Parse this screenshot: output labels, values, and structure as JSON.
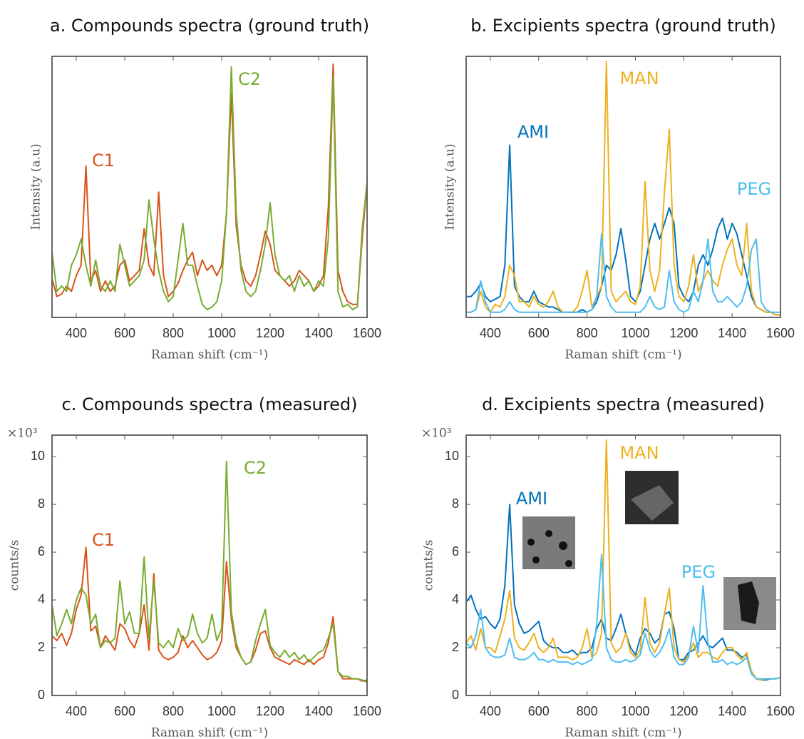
{
  "chart_data": [
    {
      "type": "line",
      "title": "a. Compounds spectra (ground truth)",
      "x_label": "Raman shift (cm⁻¹)",
      "y_label": "Intensity (a.u)",
      "x": [
        300,
        320,
        340,
        360,
        380,
        400,
        420,
        440,
        460,
        480,
        500,
        520,
        540,
        560,
        580,
        600,
        620,
        640,
        660,
        680,
        700,
        720,
        740,
        760,
        780,
        800,
        820,
        840,
        860,
        880,
        900,
        920,
        940,
        960,
        980,
        1000,
        1020,
        1040,
        1060,
        1080,
        1100,
        1120,
        1140,
        1160,
        1180,
        1200,
        1220,
        1240,
        1260,
        1280,
        1300,
        1320,
        1340,
        1360,
        1380,
        1400,
        1420,
        1440,
        1460,
        1480,
        1500,
        1520,
        1540,
        1560,
        1580,
        1600
      ],
      "xlim": [
        300,
        1600
      ],
      "xticks": [
        400,
        600,
        800,
        1000,
        1200,
        1400,
        1600
      ],
      "ylim": [
        0,
        1
      ],
      "series": [
        {
          "name": "C1",
          "color": "#d95319",
          "values": [
            0.15,
            0.08,
            0.09,
            0.12,
            0.1,
            0.16,
            0.2,
            0.58,
            0.14,
            0.18,
            0.1,
            0.14,
            0.1,
            0.12,
            0.2,
            0.22,
            0.14,
            0.16,
            0.18,
            0.34,
            0.2,
            0.16,
            0.48,
            0.16,
            0.08,
            0.1,
            0.13,
            0.18,
            0.22,
            0.25,
            0.16,
            0.22,
            0.18,
            0.2,
            0.16,
            0.2,
            0.4,
            0.86,
            0.35,
            0.2,
            0.14,
            0.12,
            0.16,
            0.24,
            0.33,
            0.28,
            0.18,
            0.16,
            0.14,
            0.12,
            0.14,
            0.18,
            0.16,
            0.14,
            0.1,
            0.12,
            0.16,
            0.42,
            0.97,
            0.18,
            0.1,
            0.06,
            0.05,
            0.05,
            0.3,
            0.52
          ]
        },
        {
          "name": "C2",
          "color": "#77ac30",
          "values": [
            0.25,
            0.1,
            0.12,
            0.1,
            0.2,
            0.24,
            0.3,
            0.2,
            0.12,
            0.22,
            0.12,
            0.1,
            0.14,
            0.1,
            0.28,
            0.2,
            0.12,
            0.14,
            0.16,
            0.22,
            0.45,
            0.3,
            0.18,
            0.1,
            0.06,
            0.08,
            0.22,
            0.36,
            0.2,
            0.2,
            0.12,
            0.05,
            0.03,
            0.04,
            0.06,
            0.14,
            0.4,
            0.96,
            0.4,
            0.18,
            0.1,
            0.08,
            0.1,
            0.18,
            0.28,
            0.44,
            0.24,
            0.16,
            0.14,
            0.16,
            0.1,
            0.16,
            0.12,
            0.14,
            0.1,
            0.14,
            0.12,
            0.3,
            0.92,
            0.1,
            0.04,
            0.05,
            0.03,
            0.04,
            0.34,
            0.52
          ]
        }
      ]
    },
    {
      "type": "line",
      "title": "b. Excipients spectra (ground truth)",
      "x_label": "Raman shift (cm⁻¹)",
      "y_label": "Intensity (a.u)",
      "x": [
        300,
        320,
        340,
        360,
        380,
        400,
        420,
        440,
        460,
        480,
        500,
        520,
        540,
        560,
        580,
        600,
        620,
        640,
        660,
        680,
        700,
        720,
        740,
        760,
        780,
        800,
        820,
        840,
        860,
        880,
        900,
        920,
        940,
        960,
        980,
        1000,
        1020,
        1040,
        1060,
        1080,
        1100,
        1120,
        1140,
        1160,
        1180,
        1200,
        1220,
        1240,
        1260,
        1280,
        1300,
        1320,
        1340,
        1360,
        1380,
        1400,
        1420,
        1440,
        1460,
        1480,
        1500,
        1520,
        1540,
        1560,
        1580,
        1600
      ],
      "xlim": [
        300,
        1600
      ],
      "xticks": [
        400,
        600,
        800,
        1000,
        1200,
        1400,
        1600
      ],
      "ylim": [
        0,
        1
      ],
      "series": [
        {
          "name": "AMI",
          "color": "#0072bd",
          "values": [
            0.08,
            0.08,
            0.1,
            0.13,
            0.08,
            0.06,
            0.07,
            0.08,
            0.2,
            0.66,
            0.12,
            0.08,
            0.06,
            0.06,
            0.1,
            0.06,
            0.05,
            0.04,
            0.04,
            0.03,
            0.02,
            0.02,
            0.02,
            0.02,
            0.03,
            0.02,
            0.03,
            0.06,
            0.12,
            0.2,
            0.18,
            0.24,
            0.34,
            0.22,
            0.08,
            0.06,
            0.1,
            0.2,
            0.3,
            0.36,
            0.3,
            0.36,
            0.42,
            0.36,
            0.12,
            0.08,
            0.06,
            0.1,
            0.2,
            0.24,
            0.2,
            0.26,
            0.34,
            0.38,
            0.3,
            0.36,
            0.32,
            0.24,
            0.16,
            0.08,
            0.04,
            0.03,
            0.02,
            0.02,
            0.01,
            0.01
          ]
        },
        {
          "name": "MAN",
          "color": "#edb120",
          "values": [
            0.02,
            0.02,
            0.03,
            0.1,
            0.04,
            0.02,
            0.05,
            0.04,
            0.08,
            0.2,
            0.16,
            0.06,
            0.06,
            0.04,
            0.08,
            0.05,
            0.04,
            0.06,
            0.1,
            0.04,
            0.02,
            0.02,
            0.02,
            0.04,
            0.1,
            0.18,
            0.04,
            0.08,
            0.12,
            0.98,
            0.1,
            0.06,
            0.08,
            0.1,
            0.06,
            0.05,
            0.12,
            0.52,
            0.18,
            0.1,
            0.18,
            0.48,
            0.72,
            0.2,
            0.08,
            0.06,
            0.12,
            0.24,
            0.1,
            0.14,
            0.18,
            0.14,
            0.12,
            0.2,
            0.26,
            0.3,
            0.2,
            0.16,
            0.36,
            0.1,
            0.04,
            0.03,
            0.02,
            0.02,
            0.01,
            0.01
          ]
        },
        {
          "name": "PEG",
          "color": "#4dbeee",
          "values": [
            0.02,
            0.02,
            0.03,
            0.14,
            0.06,
            0.02,
            0.02,
            0.02,
            0.03,
            0.06,
            0.03,
            0.02,
            0.02,
            0.02,
            0.02,
            0.02,
            0.02,
            0.02,
            0.02,
            0.02,
            0.02,
            0.02,
            0.02,
            0.02,
            0.02,
            0.02,
            0.03,
            0.08,
            0.32,
            0.08,
            0.04,
            0.02,
            0.02,
            0.02,
            0.02,
            0.02,
            0.02,
            0.04,
            0.08,
            0.04,
            0.03,
            0.04,
            0.18,
            0.06,
            0.03,
            0.02,
            0.03,
            0.1,
            0.06,
            0.14,
            0.3,
            0.1,
            0.06,
            0.06,
            0.08,
            0.06,
            0.04,
            0.06,
            0.12,
            0.26,
            0.3,
            0.06,
            0.03,
            0.02,
            0.02,
            0.02
          ]
        }
      ]
    },
    {
      "type": "line",
      "title": "c. Compounds spectra (measured)",
      "x_label": "Raman shift (cm⁻¹)",
      "y_label": "counts/s",
      "y_exponent": "×10³",
      "x": [
        300,
        320,
        340,
        360,
        380,
        400,
        420,
        440,
        460,
        480,
        500,
        520,
        540,
        560,
        580,
        600,
        620,
        640,
        660,
        680,
        700,
        720,
        740,
        760,
        780,
        800,
        820,
        840,
        860,
        880,
        900,
        920,
        940,
        960,
        980,
        1000,
        1020,
        1040,
        1060,
        1080,
        1100,
        1120,
        1140,
        1160,
        1180,
        1200,
        1220,
        1240,
        1260,
        1280,
        1300,
        1320,
        1340,
        1360,
        1380,
        1400,
        1420,
        1440,
        1460,
        1480,
        1500,
        1520,
        1540,
        1560,
        1580,
        1600
      ],
      "xlim": [
        300,
        1600
      ],
      "xticks": [
        400,
        600,
        800,
        1000,
        1200,
        1400,
        1600
      ],
      "ylim": [
        0,
        10.9
      ],
      "yticks": [
        0,
        2,
        4,
        6,
        8,
        10
      ],
      "series": [
        {
          "name": "C1",
          "color": "#d95319",
          "values": [
            2.5,
            2.3,
            2.6,
            2.1,
            2.6,
            3.6,
            4.2,
            6.2,
            2.7,
            2.9,
            2.0,
            2.5,
            2.2,
            1.9,
            3.0,
            2.8,
            2.3,
            2.0,
            2.6,
            3.8,
            1.9,
            5.1,
            1.9,
            1.6,
            1.5,
            1.6,
            1.8,
            2.5,
            2.0,
            2.3,
            2.0,
            1.7,
            1.5,
            1.6,
            1.8,
            2.3,
            5.6,
            3.2,
            2.0,
            1.6,
            1.3,
            1.4,
            1.9,
            2.6,
            2.7,
            2.0,
            1.6,
            1.5,
            1.4,
            1.3,
            1.5,
            1.4,
            1.3,
            1.5,
            1.3,
            1.5,
            1.6,
            2.2,
            3.3,
            1.0,
            0.7,
            0.7,
            0.7,
            0.7,
            0.6,
            0.65
          ]
        },
        {
          "name": "C2",
          "color": "#77ac30",
          "values": [
            3.8,
            2.5,
            3.0,
            3.6,
            3.0,
            4.0,
            4.5,
            4.2,
            3.0,
            3.4,
            2.0,
            2.3,
            2.2,
            2.4,
            4.8,
            3.0,
            3.5,
            2.6,
            2.6,
            5.8,
            2.4,
            4.8,
            2.2,
            2.0,
            2.3,
            2.0,
            2.8,
            2.3,
            2.5,
            3.4,
            2.6,
            2.2,
            2.4,
            3.4,
            2.3,
            2.8,
            9.8,
            3.5,
            2.2,
            1.6,
            1.3,
            1.4,
            2.3,
            3.0,
            3.6,
            2.1,
            1.8,
            1.6,
            1.9,
            1.6,
            1.8,
            1.5,
            1.7,
            1.4,
            1.6,
            1.8,
            1.9,
            2.4,
            3.0,
            1.0,
            0.8,
            0.8,
            0.7,
            0.7,
            0.65,
            0.55
          ]
        }
      ]
    },
    {
      "type": "line",
      "title": "d. Excipients spectra (measured)",
      "x_label": "Raman shift (cm⁻¹)",
      "y_label": "counts/s",
      "y_exponent": "×10³",
      "x": [
        300,
        320,
        340,
        360,
        380,
        400,
        420,
        440,
        460,
        480,
        500,
        520,
        540,
        560,
        580,
        600,
        620,
        640,
        660,
        680,
        700,
        720,
        740,
        760,
        780,
        800,
        820,
        840,
        860,
        880,
        900,
        920,
        940,
        960,
        980,
        1000,
        1020,
        1040,
        1060,
        1080,
        1100,
        1120,
        1140,
        1160,
        1180,
        1200,
        1220,
        1240,
        1260,
        1280,
        1300,
        1320,
        1340,
        1360,
        1380,
        1400,
        1420,
        1440,
        1460,
        1480,
        1500,
        1520,
        1540,
        1560,
        1580,
        1600
      ],
      "xlim": [
        300,
        1600
      ],
      "xticks": [
        400,
        600,
        800,
        1000,
        1200,
        1400,
        1600
      ],
      "ylim": [
        0,
        10.9
      ],
      "yticks": [
        0,
        2,
        4,
        6,
        8,
        10
      ],
      "series": [
        {
          "name": "AMI",
          "color": "#0072bd",
          "values": [
            3.9,
            4.2,
            3.6,
            3.2,
            3.3,
            3.0,
            2.8,
            3.2,
            4.6,
            8.0,
            3.8,
            3.0,
            2.6,
            2.7,
            2.9,
            3.1,
            2.3,
            2.1,
            2.0,
            2.0,
            1.8,
            1.8,
            1.9,
            1.7,
            1.8,
            1.8,
            2.0,
            2.8,
            3.2,
            2.4,
            2.3,
            2.8,
            3.4,
            2.6,
            2.0,
            1.7,
            2.4,
            2.8,
            2.6,
            2.2,
            2.4,
            3.4,
            3.5,
            2.8,
            1.5,
            1.5,
            1.8,
            1.9,
            2.2,
            2.5,
            2.1,
            2.0,
            2.2,
            2.4,
            1.9,
            1.9,
            1.8,
            1.6,
            1.7,
            1.0,
            0.7,
            0.65,
            0.65,
            0.7,
            0.7,
            0.75
          ]
        },
        {
          "name": "MAN",
          "color": "#edb120",
          "values": [
            2.2,
            2.5,
            1.9,
            2.8,
            2.0,
            2.0,
            1.8,
            2.5,
            3.2,
            4.4,
            2.4,
            2.0,
            1.9,
            2.2,
            2.6,
            2.0,
            1.8,
            2.0,
            2.4,
            1.6,
            1.6,
            1.6,
            1.5,
            1.6,
            2.0,
            2.8,
            1.6,
            1.8,
            2.6,
            10.7,
            2.2,
            1.8,
            2.0,
            2.6,
            1.8,
            1.6,
            1.9,
            4.1,
            2.2,
            1.8,
            2.2,
            3.4,
            4.5,
            2.0,
            1.5,
            1.4,
            1.7,
            2.2,
            1.6,
            1.8,
            1.8,
            1.6,
            1.5,
            1.8,
            2.0,
            2.0,
            1.7,
            1.5,
            1.8,
            1.0,
            0.7,
            0.65,
            0.7,
            0.7,
            0.7,
            0.75
          ]
        },
        {
          "name": "PEG",
          "color": "#4dbeee",
          "values": [
            2.2,
            2.0,
            2.5,
            3.6,
            2.0,
            1.7,
            1.6,
            1.6,
            1.7,
            2.4,
            1.6,
            1.5,
            1.5,
            1.6,
            1.8,
            1.5,
            1.5,
            1.4,
            1.5,
            1.4,
            1.4,
            1.4,
            1.3,
            1.4,
            1.3,
            1.4,
            1.5,
            3.0,
            5.9,
            2.0,
            1.5,
            1.4,
            1.4,
            1.5,
            1.4,
            1.5,
            1.7,
            2.6,
            1.9,
            1.6,
            1.8,
            2.2,
            2.8,
            1.6,
            1.3,
            1.3,
            1.6,
            2.9,
            1.8,
            4.6,
            2.2,
            1.4,
            1.4,
            1.5,
            1.3,
            1.4,
            1.3,
            1.4,
            1.6,
            0.9,
            0.7,
            0.7,
            0.7,
            0.7,
            0.7,
            0.75
          ]
        }
      ]
    }
  ]
}
